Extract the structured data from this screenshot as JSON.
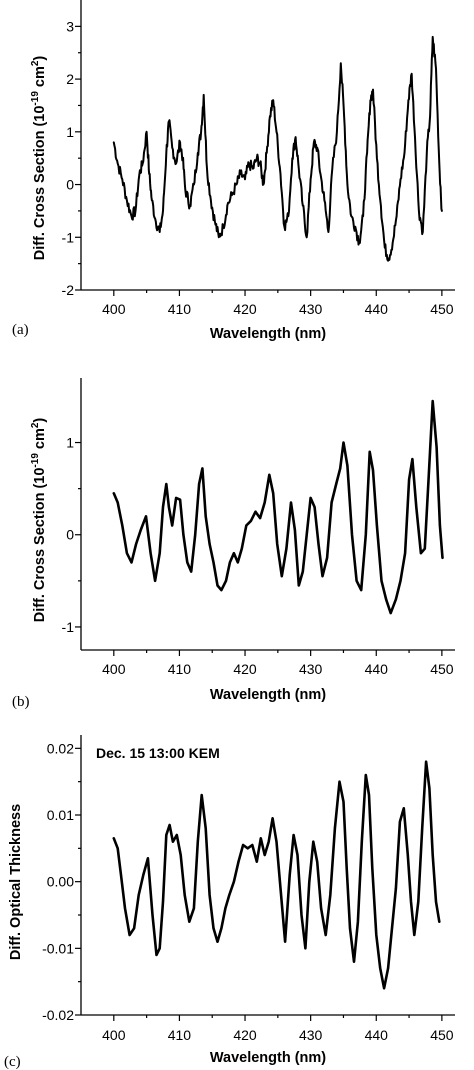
{
  "chart_data": [
    {
      "type": "line",
      "panel_label": "(a)",
      "xlabel": "Wavelength (nm)",
      "ylabel": "Diff. Cross Section (10",
      "ylabel_exp1": "-19",
      "ylabel_mid": " cm",
      "ylabel_exp2": "2",
      "ylabel_end": ")",
      "annotation": "",
      "xlim": [
        395,
        452
      ],
      "ylim": [
        -2,
        3.5
      ],
      "xticks": [
        400,
        410,
        420,
        430,
        440,
        450
      ],
      "yticks": [
        -2,
        -1,
        0,
        1,
        2,
        3
      ],
      "ytick_labels": [
        "-2",
        "-1",
        "0",
        "1",
        "2",
        "3"
      ],
      "noisy": true,
      "series": [
        {
          "x": [
            400,
            400.6,
            401.3,
            402,
            402.7,
            403.3,
            403.9,
            404.4,
            405.0,
            405.4,
            405.8,
            406.4,
            407.0,
            407.5,
            408.0,
            408.4,
            408.9,
            409.5,
            410.1,
            410.5,
            410.9,
            411.6,
            412.2,
            412.8,
            413.3,
            413.7,
            414.2,
            414.8,
            415.4,
            416.0,
            416.7,
            417.3,
            418.0,
            418.7,
            419.3,
            420.0,
            420.6,
            421.2,
            421.8,
            422.3,
            422.8,
            423.3,
            423.8,
            424.3,
            424.8,
            425.4,
            426.0,
            426.6,
            427.2,
            427.7,
            428.2,
            428.8,
            429.4,
            430.0,
            430.5,
            431.0,
            431.5,
            432.1,
            432.7,
            433.3,
            434.0,
            434.6,
            435.1,
            435.6,
            436.2,
            436.8,
            437.4,
            438.0,
            438.6,
            439.1,
            439.5,
            440.1,
            440.7,
            441.3,
            441.9,
            442.5,
            443.1,
            443.7,
            444.3,
            444.9,
            445.4,
            445.9,
            446.5,
            447.1,
            447.7,
            448.2,
            448.6,
            449.1,
            449.6,
            450
          ],
          "y": [
            0.8,
            0.4,
            0.1,
            -0.3,
            -0.6,
            -0.5,
            0.2,
            0.4,
            1.0,
            0.2,
            -0.3,
            -0.7,
            -0.9,
            -0.5,
            0.6,
            1.2,
            0.7,
            0.4,
            0.8,
            0.5,
            -0.1,
            -0.4,
            0.0,
            0.6,
            1.0,
            1.7,
            0.3,
            -0.3,
            -0.7,
            -1.0,
            -0.8,
            -0.4,
            -0.2,
            0.0,
            0.2,
            0.1,
            0.4,
            0.3,
            0.5,
            0.4,
            0.0,
            0.6,
            1.3,
            1.6,
            1.0,
            0.2,
            -0.8,
            -0.6,
            0.5,
            0.9,
            0.3,
            -0.4,
            -1.0,
            0.1,
            0.8,
            0.7,
            0.2,
            -0.3,
            -0.9,
            0.3,
            1.0,
            2.3,
            1.3,
            0.0,
            -0.6,
            -0.8,
            -1.1,
            -0.6,
            0.6,
            1.6,
            1.8,
            0.5,
            -0.4,
            -1.2,
            -1.4,
            -1.1,
            -0.6,
            0.1,
            0.6,
            1.6,
            2.1,
            0.9,
            -0.5,
            -0.9,
            0.6,
            1.3,
            2.8,
            2.2,
            0.4,
            -0.5
          ]
        }
      ]
    },
    {
      "type": "line",
      "panel_label": "(b)",
      "xlabel": "Wavelength (nm)",
      "ylabel": "Diff. Cross Section (10",
      "ylabel_exp1": "-19",
      "ylabel_mid": " cm",
      "ylabel_exp2": "2",
      "ylabel_end": ")",
      "annotation": "",
      "xlim": [
        395,
        452
      ],
      "ylim": [
        -1.25,
        1.7
      ],
      "xticks": [
        400,
        410,
        420,
        430,
        440,
        450
      ],
      "yticks": [
        -1,
        0,
        1
      ],
      "ytick_labels": [
        "-1",
        "0",
        "1"
      ],
      "noisy": false,
      "series": [
        {
          "x": [
            400,
            400.6,
            401.3,
            402,
            402.7,
            403.4,
            404.1,
            404.9,
            405.6,
            406.3,
            407.0,
            407.5,
            408.0,
            408.4,
            408.9,
            409.5,
            410.1,
            410.6,
            411.2,
            411.8,
            412.4,
            413.0,
            413.5,
            414.0,
            414.6,
            415.2,
            415.8,
            416.4,
            417.1,
            417.7,
            418.3,
            418.9,
            419.5,
            420.2,
            420.9,
            421.6,
            422.3,
            423.0,
            423.7,
            424.3,
            424.9,
            425.6,
            426.3,
            427.0,
            427.6,
            428.2,
            428.8,
            429.4,
            430.0,
            430.6,
            431.2,
            431.8,
            432.5,
            433.2,
            433.9,
            434.5,
            435.0,
            435.6,
            436.3,
            437.0,
            437.7,
            438.4,
            439.0,
            439.5,
            440.1,
            440.8,
            441.5,
            442.2,
            443.0,
            443.7,
            444.4,
            445.0,
            445.5,
            446.1,
            446.8,
            447.4,
            448.0,
            448.6,
            449.2,
            449.7,
            450.1
          ],
          "y": [
            0.45,
            0.35,
            0.1,
            -0.2,
            -0.3,
            -0.1,
            0.05,
            0.2,
            -0.2,
            -0.5,
            -0.2,
            0.3,
            0.55,
            0.3,
            0.1,
            0.4,
            0.38,
            0.0,
            -0.3,
            -0.4,
            0.0,
            0.55,
            0.72,
            0.2,
            -0.1,
            -0.3,
            -0.55,
            -0.6,
            -0.5,
            -0.3,
            -0.2,
            -0.3,
            -0.15,
            0.1,
            0.15,
            0.25,
            0.18,
            0.35,
            0.65,
            0.45,
            -0.1,
            -0.45,
            -0.15,
            0.35,
            0.05,
            -0.55,
            -0.4,
            0.0,
            0.4,
            0.3,
            -0.1,
            -0.45,
            -0.25,
            0.35,
            0.55,
            0.72,
            1.0,
            0.75,
            0.0,
            -0.5,
            -0.6,
            0.0,
            0.9,
            0.7,
            0.1,
            -0.5,
            -0.7,
            -0.85,
            -0.7,
            -0.5,
            -0.2,
            0.6,
            0.82,
            0.3,
            -0.2,
            -0.15,
            0.65,
            1.45,
            0.95,
            0.1,
            -0.25
          ]
        }
      ]
    },
    {
      "type": "line",
      "panel_label": "(c)",
      "xlabel": "Wavelength (nm)",
      "ylabel": "Diff. Optical Thickness",
      "ylabel_exp1": "",
      "ylabel_mid": "",
      "ylabel_exp2": "",
      "ylabel_end": "",
      "annotation": "Dec. 15 13:00 KEM",
      "xlim": [
        395,
        452
      ],
      "ylim": [
        -0.02,
        0.022
      ],
      "xticks": [
        400,
        410,
        420,
        430,
        440,
        450
      ],
      "yticks": [
        -0.02,
        -0.01,
        0.0,
        0.01,
        0.02
      ],
      "ytick_labels": [
        "-0.02",
        "-0.01",
        "0.00",
        "0.01",
        "0.02"
      ],
      "noisy": false,
      "series": [
        {
          "x": [
            400,
            400.6,
            401.1,
            401.7,
            402.4,
            403.1,
            403.8,
            404.5,
            405.2,
            405.9,
            406.5,
            407.0,
            407.5,
            408.0,
            408.5,
            409.0,
            409.6,
            410.2,
            410.8,
            411.5,
            412.2,
            412.8,
            413.4,
            414.0,
            414.6,
            415.2,
            415.8,
            416.4,
            417.0,
            417.6,
            418.3,
            419.0,
            419.7,
            420.4,
            421.1,
            421.8,
            422.4,
            423.0,
            423.6,
            424.2,
            424.8,
            425.4,
            426.1,
            426.8,
            427.4,
            428.0,
            428.6,
            429.2,
            429.8,
            430.4,
            431.0,
            431.6,
            432.3,
            433.0,
            433.7,
            434.4,
            435.0,
            435.5,
            436.0,
            436.6,
            437.2,
            437.8,
            438.4,
            438.9,
            439.4,
            440.0,
            440.6,
            441.2,
            441.8,
            442.4,
            443.0,
            443.6,
            444.2,
            444.8,
            445.3,
            445.8,
            446.4,
            447.0,
            447.6,
            448.1,
            448.6,
            449.1,
            449.6
          ],
          "y": [
            0.0065,
            0.005,
            0.001,
            -0.004,
            -0.008,
            -0.007,
            -0.002,
            0.001,
            0.0035,
            -0.005,
            -0.011,
            -0.01,
            -0.003,
            0.007,
            0.0085,
            0.006,
            0.007,
            0.004,
            -0.002,
            -0.006,
            -0.004,
            0.006,
            0.013,
            0.008,
            -0.002,
            -0.007,
            -0.009,
            -0.007,
            -0.004,
            -0.002,
            0.0,
            0.003,
            0.0055,
            0.005,
            0.0055,
            0.003,
            0.0065,
            0.004,
            0.006,
            0.0095,
            0.006,
            -0.001,
            -0.009,
            0.001,
            0.007,
            0.004,
            -0.005,
            -0.01,
            0.0,
            0.006,
            0.003,
            -0.004,
            -0.008,
            -0.002,
            0.008,
            0.015,
            0.012,
            0.002,
            -0.007,
            -0.012,
            -0.006,
            0.006,
            0.016,
            0.013,
            0.002,
            -0.008,
            -0.013,
            -0.016,
            -0.013,
            -0.007,
            -0.001,
            0.009,
            0.011,
            0.004,
            -0.003,
            -0.008,
            -0.003,
            0.008,
            0.018,
            0.014,
            0.004,
            -0.003,
            -0.006
          ]
        }
      ]
    }
  ]
}
